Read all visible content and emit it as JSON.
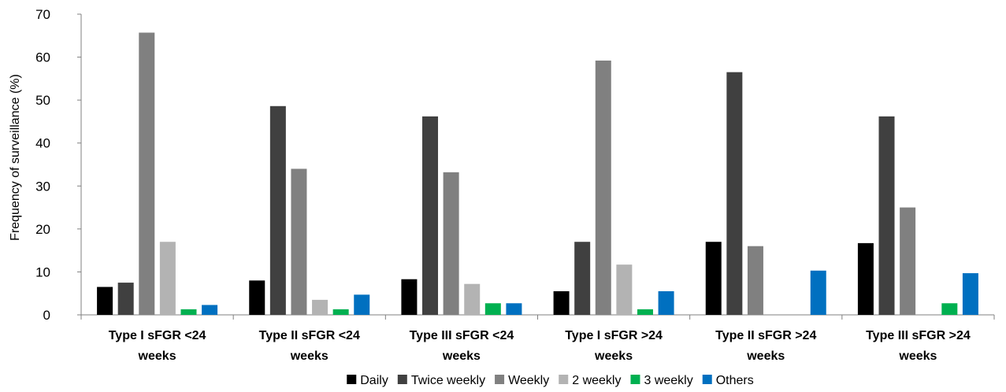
{
  "chart_data": {
    "type": "bar",
    "title": "",
    "xlabel": "",
    "ylabel": "Frequency of surveillance  (%)",
    "ylim": [
      0,
      70
    ],
    "yticks": [
      0,
      10,
      20,
      30,
      40,
      50,
      60,
      70
    ],
    "grid": false,
    "legend_position": "bottom",
    "categories": [
      [
        "Type I sFGR <24",
        "weeks"
      ],
      [
        "Type II sFGR <24",
        "weeks"
      ],
      [
        "Type III sFGR <24",
        "weeks"
      ],
      [
        "Type I sFGR >24",
        "weeks"
      ],
      [
        "Type II sFGR >24",
        "weeks"
      ],
      [
        "Type III sFGR >24",
        "weeks"
      ]
    ],
    "series": [
      {
        "name": "Daily",
        "color": "#000000",
        "values": [
          6.5,
          8.0,
          8.3,
          5.5,
          17.0,
          16.7
        ]
      },
      {
        "name": "Twice weekly",
        "color": "#404040",
        "values": [
          7.5,
          48.6,
          46.2,
          17.0,
          56.5,
          46.2
        ]
      },
      {
        "name": "Weekly",
        "color": "#808080",
        "values": [
          65.7,
          34.0,
          33.2,
          59.2,
          16.0,
          25.0
        ]
      },
      {
        "name": "2 weekly",
        "color": "#b3b3b3",
        "values": [
          17.0,
          3.5,
          7.2,
          11.7,
          0,
          0
        ]
      },
      {
        "name": "3 weekly",
        "color": "#00b050",
        "values": [
          1.3,
          1.3,
          2.7,
          1.3,
          0,
          2.7
        ]
      },
      {
        "name": "Others",
        "color": "#0070c0",
        "values": [
          2.3,
          4.7,
          2.7,
          5.5,
          10.3,
          9.7
        ]
      }
    ]
  }
}
